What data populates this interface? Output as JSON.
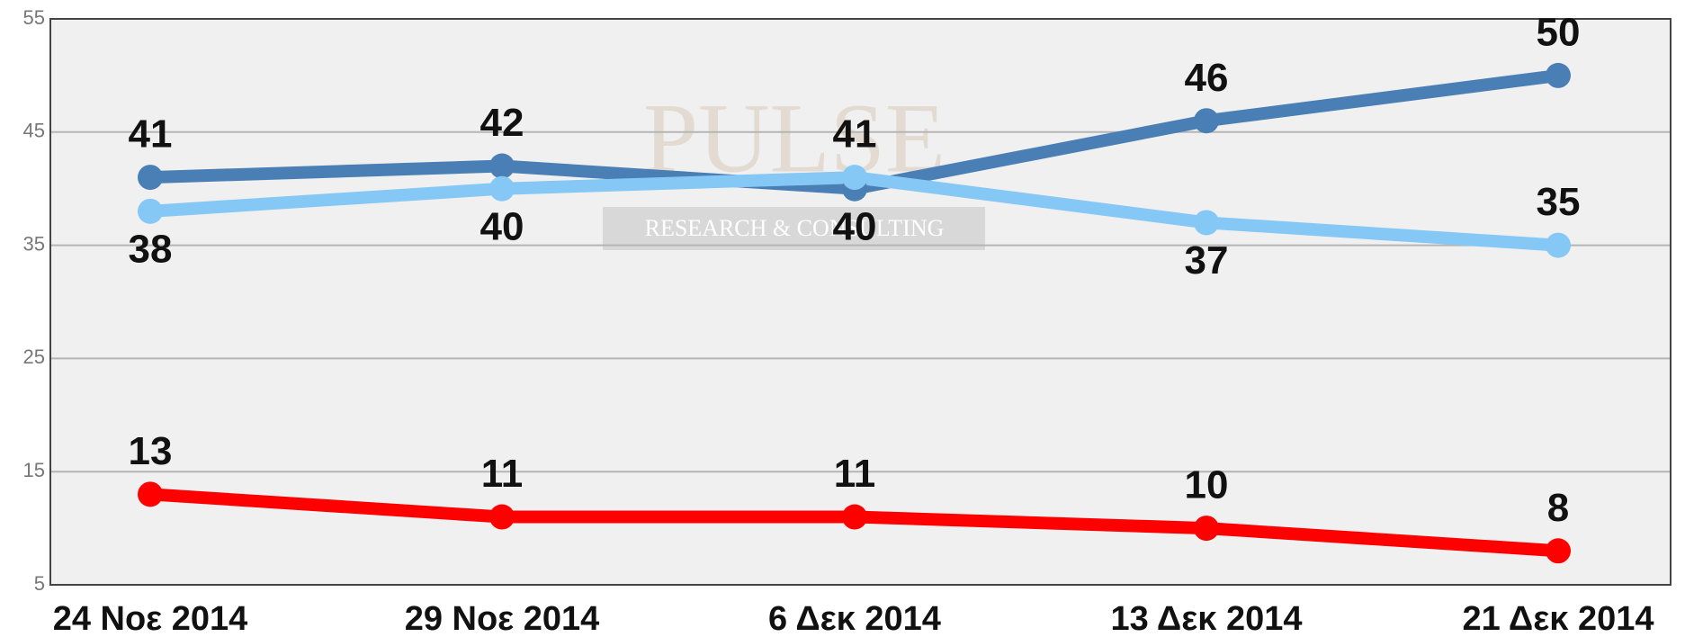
{
  "chart_data": {
    "type": "line",
    "watermark": [
      "PULSE",
      "RESEARCH & CONSULTING"
    ],
    "categories": [
      "24 Νοε 2014",
      "29 Νοε 2014",
      "6 Δεκ 2014",
      "13 Δεκ 2014",
      "21 Δεκ 2014"
    ],
    "series": [
      {
        "color": "#4a7fb5",
        "values": [
          41,
          42,
          40,
          46,
          50
        ]
      },
      {
        "color": "#85c8f5",
        "values": [
          38,
          40,
          41,
          37,
          35
        ]
      },
      {
        "color": "#ff0000",
        "values": [
          13,
          11,
          11,
          10,
          8
        ]
      }
    ],
    "ylim": [
      5,
      55
    ],
    "yticks": [
      5,
      15,
      25,
      35,
      45,
      55
    ],
    "grid": true
  }
}
